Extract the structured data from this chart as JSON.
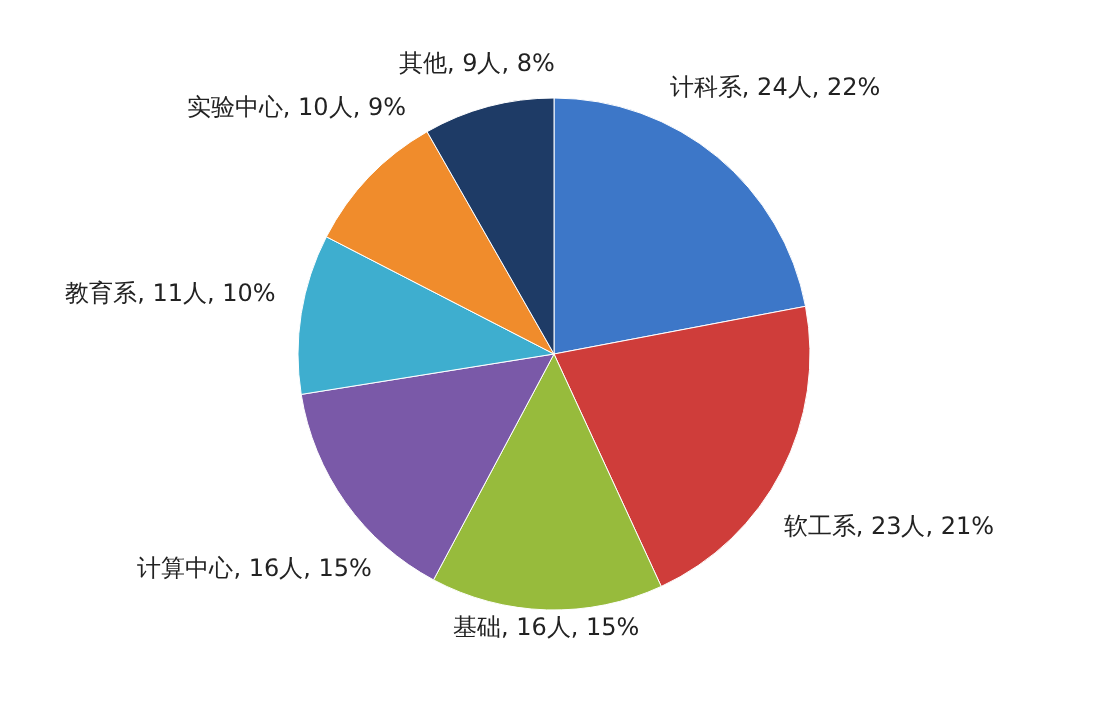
{
  "chart_data": {
    "type": "pie",
    "categories": [
      "计科系",
      "软工系",
      "基础",
      "计算中心",
      "教育系",
      "实验中心",
      "其他"
    ],
    "values": [
      24,
      23,
      16,
      16,
      11,
      10,
      9
    ],
    "value_labels": [
      "24人, 22%",
      "23人, 21%",
      "16人, 15%",
      "16人, 15%",
      "11人, 10%",
      "10人, 9%",
      "9人, 8%"
    ],
    "colors": [
      "#3d77c8",
      "#cf3d3a",
      "#97bb3c",
      "#7a59a8",
      "#3eaecf",
      "#f08c2c",
      "#1e3b66"
    ],
    "legend": false
  }
}
